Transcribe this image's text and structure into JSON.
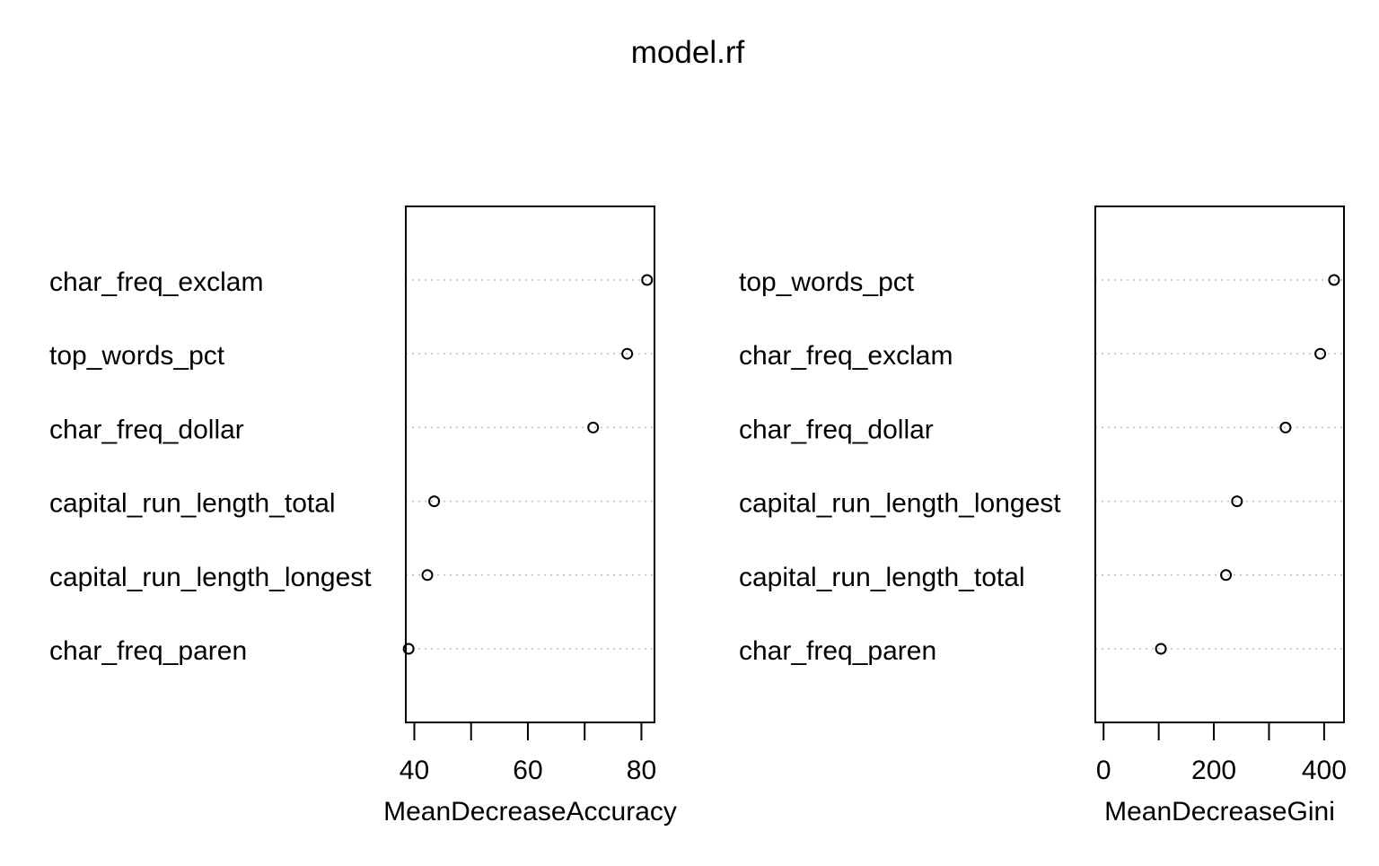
{
  "title": "model.rf",
  "chart_data": [
    {
      "type": "scatter",
      "subtype": "dotchart",
      "categories": [
        "char_freq_exclam",
        "top_words_pct",
        "char_freq_dollar",
        "capital_run_length_total",
        "capital_run_length_longest",
        "char_freq_paren"
      ],
      "values": [
        81,
        77.5,
        71.5,
        43.5,
        42.3,
        39
      ],
      "xlabel": "MeanDecreaseAccuracy",
      "xlim": [
        38.5,
        82.3
      ],
      "xticks": [
        40,
        50,
        60,
        70,
        80
      ],
      "xtick_labels": [
        "40",
        "",
        "60",
        "",
        "80"
      ],
      "grid": "dotted horizontal"
    },
    {
      "type": "scatter",
      "subtype": "dotchart",
      "categories": [
        "top_words_pct",
        "char_freq_exclam",
        "char_freq_dollar",
        "capital_run_length_longest",
        "capital_run_length_total",
        "char_freq_paren"
      ],
      "values": [
        418,
        393,
        330,
        242,
        222,
        104
      ],
      "xlabel": "MeanDecreaseGini",
      "xlim": [
        -15,
        436
      ],
      "xticks": [
        0,
        100,
        200,
        300,
        400
      ],
      "xtick_labels": [
        "0",
        "",
        "200",
        "",
        "400"
      ],
      "grid": "dotted horizontal"
    }
  ]
}
